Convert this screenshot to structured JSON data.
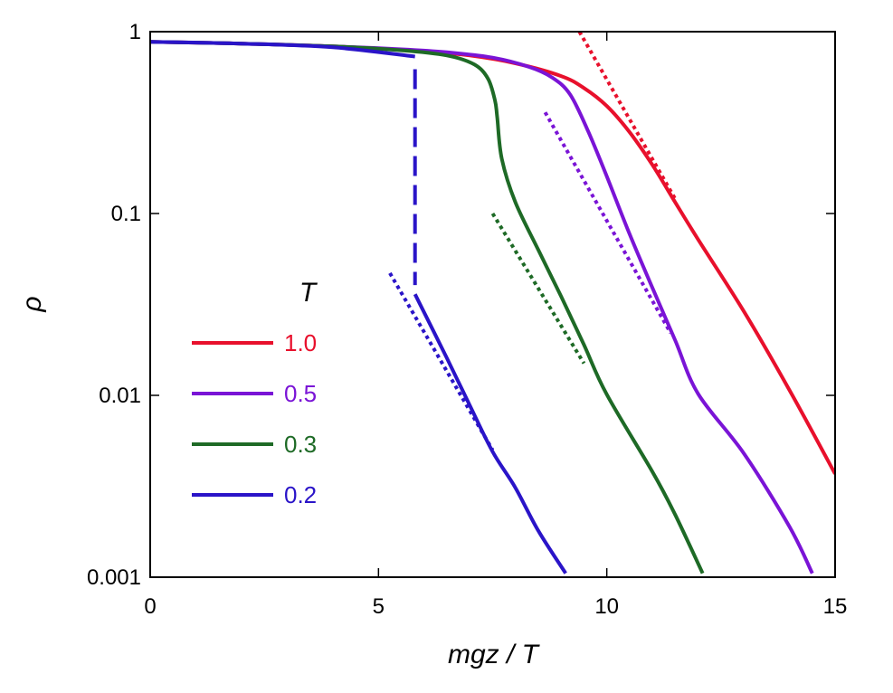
{
  "chart_data": {
    "type": "line",
    "title": "",
    "xlabel": "mgz / T",
    "ylabel": "ρ",
    "x_scale": "linear",
    "y_scale": "log",
    "xlim": [
      0,
      15
    ],
    "ylim": [
      0.001,
      1
    ],
    "x_ticks": [
      0,
      5,
      10,
      15
    ],
    "x_tick_labels": [
      "0",
      "5",
      "10",
      "15"
    ],
    "y_ticks": [
      0.001,
      0.01,
      0.1,
      1
    ],
    "y_tick_labels": [
      "0.001",
      "0.01",
      "0.1",
      "1"
    ],
    "grid": false,
    "legend": {
      "title": "T",
      "position": "center-left"
    },
    "series": [
      {
        "name": "1.0",
        "color": "#e8102c",
        "points": [
          [
            0,
            0.88
          ],
          [
            2,
            0.86
          ],
          [
            4,
            0.83
          ],
          [
            6,
            0.78
          ],
          [
            7,
            0.74
          ],
          [
            8,
            0.67
          ],
          [
            9,
            0.57
          ],
          [
            9.5,
            0.49
          ],
          [
            10,
            0.39
          ],
          [
            10.5,
            0.28
          ],
          [
            11,
            0.185
          ],
          [
            11.5,
            0.115
          ],
          [
            12,
            0.072
          ],
          [
            13,
            0.029
          ],
          [
            14,
            0.0107
          ],
          [
            15,
            0.0037
          ]
        ],
        "asymptote": [
          [
            9.4,
            1.0
          ],
          [
            11.5,
            0.12
          ]
        ]
      },
      {
        "name": "0.5",
        "color": "#7a14d6",
        "points": [
          [
            0,
            0.88
          ],
          [
            2,
            0.86
          ],
          [
            4,
            0.83
          ],
          [
            5.5,
            0.8
          ],
          [
            6.5,
            0.77
          ],
          [
            7.5,
            0.72
          ],
          [
            8.3,
            0.64
          ],
          [
            8.8,
            0.56
          ],
          [
            9.2,
            0.45
          ],
          [
            9.6,
            0.28
          ],
          [
            10,
            0.16
          ],
          [
            10.5,
            0.077
          ],
          [
            11,
            0.039
          ],
          [
            11.5,
            0.02
          ],
          [
            12,
            0.0102
          ],
          [
            13,
            0.0048
          ],
          [
            14,
            0.0019
          ],
          [
            14.5,
            0.00105
          ]
        ],
        "asymptote": [
          [
            8.65,
            0.36
          ],
          [
            11.4,
            0.022
          ]
        ]
      },
      {
        "name": "0.3",
        "color": "#1e6a26",
        "points": [
          [
            0,
            0.88
          ],
          [
            2,
            0.86
          ],
          [
            4,
            0.83
          ],
          [
            5.5,
            0.79
          ],
          [
            6.5,
            0.74
          ],
          [
            7.1,
            0.66
          ],
          [
            7.4,
            0.55
          ],
          [
            7.55,
            0.42
          ],
          [
            7.6,
            0.34
          ],
          [
            7.7,
            0.2
          ],
          [
            8,
            0.115
          ],
          [
            8.5,
            0.063
          ],
          [
            9,
            0.035
          ],
          [
            9.5,
            0.019
          ],
          [
            10,
            0.0101
          ],
          [
            11,
            0.0038
          ],
          [
            11.5,
            0.0022
          ],
          [
            12.1,
            0.00105
          ]
        ],
        "asymptote": [
          [
            7.5,
            0.1
          ],
          [
            9.5,
            0.015
          ]
        ]
      },
      {
        "name": "0.2",
        "color": "#2a14c8",
        "points": [
          [
            0,
            0.88
          ],
          [
            2,
            0.86
          ],
          [
            4,
            0.82
          ],
          [
            5.8,
            0.73
          ]
        ],
        "lower_branch": [
          [
            5.8,
            0.036
          ],
          [
            6.5,
            0.016
          ],
          [
            7,
            0.0088
          ],
          [
            7.5,
            0.0049
          ],
          [
            8,
            0.0031
          ],
          [
            8.5,
            0.0018
          ],
          [
            9.1,
            0.00105
          ]
        ],
        "jump_x": 5.8,
        "asymptote": [
          [
            5.25,
            0.047
          ],
          [
            7.5,
            0.005
          ]
        ]
      }
    ]
  }
}
